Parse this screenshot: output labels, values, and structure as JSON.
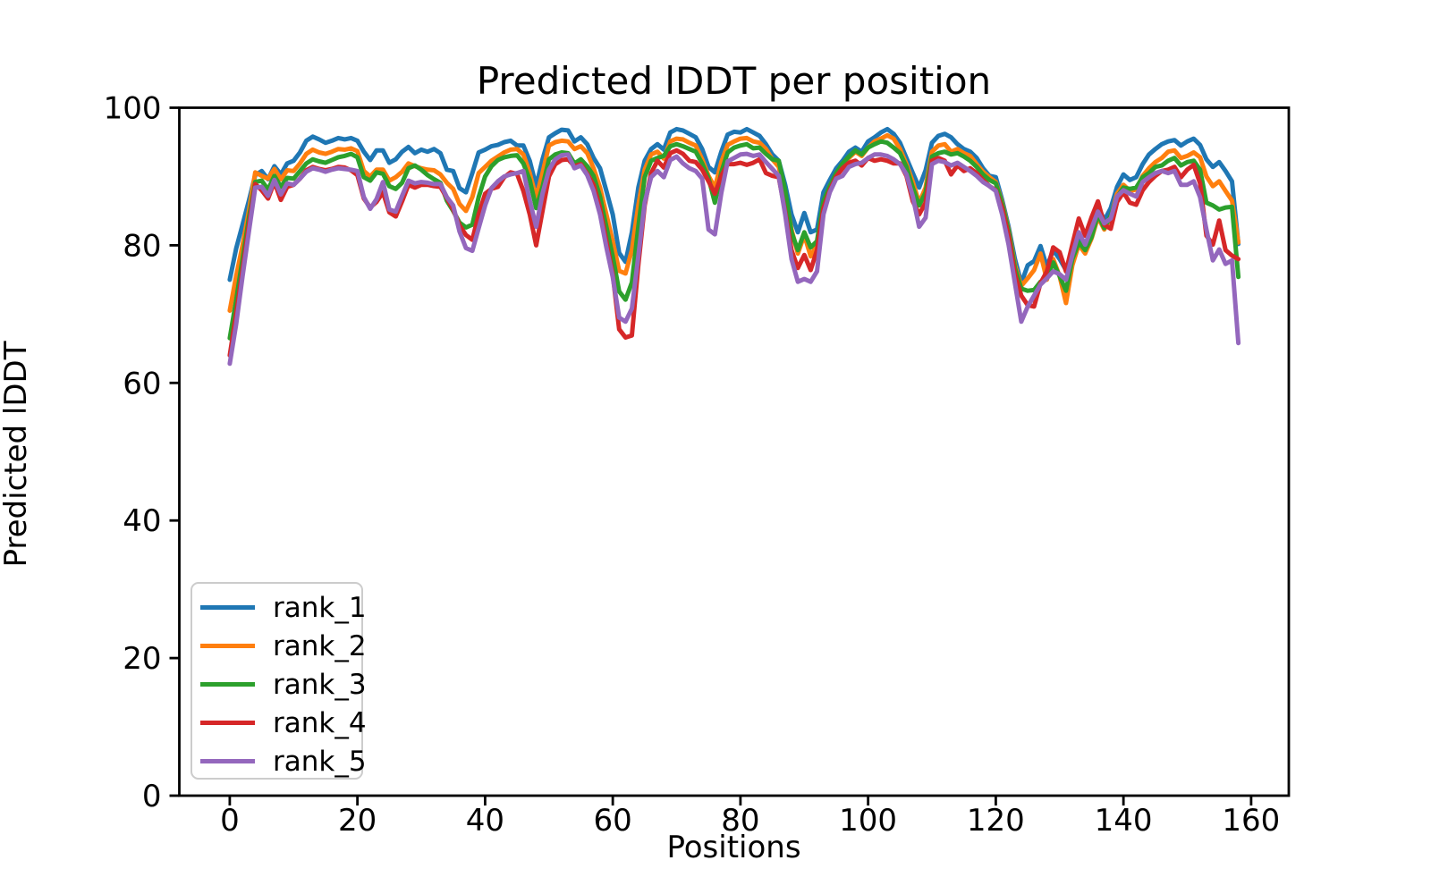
{
  "figure": {
    "background": "#ffffff",
    "text_color": "#000000",
    "spine_color": "#000000"
  },
  "chart_data": {
    "type": "line",
    "title": "Predicted lDDT per position",
    "xlabel": "Positions",
    "ylabel": "Predicted lDDT",
    "xlim": [
      -7.9,
      165.9
    ],
    "ylim": [
      0,
      100
    ],
    "x_ticks": [
      0,
      20,
      40,
      60,
      80,
      100,
      120,
      140,
      160
    ],
    "y_ticks": [
      0,
      20,
      40,
      60,
      80,
      100
    ],
    "grid": false,
    "legend_position": "lower left",
    "x_start": 0,
    "x_step": 1,
    "n_points": 159,
    "series": [
      {
        "name": "rank_1",
        "color": "#1f77b4",
        "values": [
          75.0,
          79.5,
          83.0,
          86.5,
          90.2,
          90.8,
          89.6,
          91.5,
          90.3,
          91.9,
          92.3,
          93.5,
          95.2,
          95.8,
          95.4,
          94.9,
          95.2,
          95.6,
          95.4,
          95.6,
          95.2,
          93.6,
          92.4,
          93.8,
          93.8,
          92.0,
          92.5,
          93.6,
          94.3,
          93.4,
          93.9,
          93.6,
          94.0,
          93.4,
          91.0,
          90.8,
          88.3,
          87.7,
          90.5,
          93.5,
          93.9,
          94.4,
          94.6,
          95.0,
          95.2,
          94.5,
          94.5,
          92.3,
          88.6,
          92.5,
          95.7,
          96.3,
          96.8,
          96.7,
          95.1,
          95.7,
          94.7,
          92.7,
          91.2,
          87.9,
          84.5,
          78.9,
          77.6,
          81.9,
          88.4,
          92.3,
          94.0,
          94.7,
          93.9,
          96.4,
          96.9,
          96.7,
          96.2,
          95.7,
          94.0,
          91.4,
          90.6,
          93.6,
          96.1,
          96.5,
          96.4,
          96.9,
          96.4,
          95.9,
          94.7,
          93.2,
          92.3,
          88.8,
          84.5,
          81.9,
          84.7,
          81.9,
          82.3,
          87.7,
          89.5,
          91.2,
          92.3,
          93.6,
          94.2,
          93.6,
          95.1,
          95.7,
          96.4,
          96.9,
          96.2,
          94.9,
          92.7,
          90.5,
          88.4,
          90.9,
          94.9,
          95.9,
          96.2,
          95.7,
          94.7,
          94.0,
          93.6,
          92.7,
          91.2,
          90.1,
          89.9,
          86.6,
          82.7,
          78.0,
          74.5,
          77.1,
          77.7,
          79.9,
          76.9,
          79.3,
          78.0,
          76.4,
          79.3,
          81.0,
          79.7,
          82.1,
          85.8,
          83.6,
          85.4,
          88.5,
          90.3,
          89.5,
          89.9,
          91.8,
          93.2,
          94.0,
          94.7,
          95.1,
          95.3,
          94.5,
          95.1,
          95.5,
          94.6,
          92.5,
          91.4,
          92.1,
          90.8,
          89.3,
          80.2
        ]
      },
      {
        "name": "rank_2",
        "color": "#ff7f0e",
        "values": [
          70.5,
          75.5,
          80.0,
          85.0,
          90.6,
          90.1,
          89.7,
          91.1,
          89.6,
          90.9,
          90.8,
          91.9,
          93.3,
          93.9,
          93.5,
          93.3,
          93.6,
          94.0,
          93.9,
          94.1,
          93.7,
          90.8,
          90.0,
          91.0,
          91.0,
          89.4,
          89.9,
          90.7,
          91.9,
          91.5,
          91.2,
          91.0,
          90.9,
          90.3,
          89.1,
          88.2,
          86.0,
          85.0,
          87.0,
          90.5,
          91.4,
          92.3,
          92.9,
          93.5,
          93.9,
          94.0,
          93.2,
          90.5,
          86.9,
          90.5,
          94.5,
          95.0,
          95.2,
          95.1,
          94.0,
          94.4,
          93.4,
          91.2,
          88.4,
          84.5,
          80.6,
          76.3,
          75.9,
          79.3,
          85.8,
          91.0,
          93.2,
          93.6,
          92.6,
          95.1,
          95.5,
          95.4,
          94.9,
          94.5,
          92.5,
          90.1,
          88.4,
          92.1,
          94.6,
          95.1,
          95.5,
          95.6,
          95.1,
          94.9,
          94.0,
          92.5,
          91.4,
          87.5,
          82.3,
          78.8,
          81.5,
          78.4,
          80.1,
          86.2,
          88.6,
          90.3,
          91.6,
          92.7,
          93.6,
          93.0,
          94.2,
          95.1,
          95.5,
          96.0,
          95.5,
          94.0,
          91.8,
          89.2,
          86.2,
          88.4,
          93.6,
          94.5,
          94.7,
          93.6,
          94.0,
          93.4,
          93.0,
          91.8,
          90.7,
          89.9,
          89.2,
          86.2,
          82.3,
          77.1,
          74.1,
          75.2,
          76.4,
          78.8,
          75.0,
          78.0,
          75.5,
          71.6,
          77.1,
          80.1,
          78.8,
          81.0,
          84.1,
          82.3,
          84.1,
          87.5,
          88.8,
          87.9,
          88.1,
          90.1,
          91.2,
          92.1,
          92.7,
          93.6,
          93.8,
          92.7,
          93.0,
          93.5,
          92.8,
          90.0,
          88.6,
          89.3,
          87.9,
          86.5,
          80.4
        ]
      },
      {
        "name": "rank_3",
        "color": "#2ca02c",
        "values": [
          66.5,
          72.0,
          78.0,
          84.0,
          89.2,
          89.4,
          88.1,
          90.1,
          88.5,
          89.8,
          89.7,
          90.8,
          91.9,
          92.5,
          92.2,
          92.0,
          92.4,
          92.8,
          93.0,
          93.3,
          92.8,
          89.9,
          89.4,
          90.6,
          90.4,
          88.6,
          88.2,
          89.1,
          91.2,
          91.6,
          91.0,
          90.2,
          89.6,
          89.1,
          86.5,
          85.0,
          83.3,
          82.6,
          83.0,
          87.0,
          90.0,
          91.5,
          92.4,
          92.8,
          93.0,
          93.1,
          91.9,
          89.5,
          85.4,
          88.5,
          92.5,
          93.2,
          93.5,
          93.4,
          91.9,
          92.5,
          91.5,
          90.1,
          87.1,
          82.7,
          78.4,
          73.3,
          72.1,
          74.6,
          82.7,
          89.9,
          92.3,
          92.7,
          93.0,
          94.4,
          94.7,
          94.4,
          94.0,
          93.6,
          91.9,
          89.8,
          86.2,
          90.6,
          93.5,
          94.2,
          94.5,
          94.7,
          94.1,
          94.2,
          93.3,
          92.5,
          92.3,
          88.0,
          81.9,
          79.3,
          81.9,
          79.7,
          80.6,
          86.4,
          88.6,
          90.5,
          91.9,
          92.9,
          93.8,
          93.2,
          94.2,
          94.7,
          95.1,
          94.9,
          94.2,
          93.4,
          91.4,
          88.4,
          85.8,
          87.7,
          92.9,
          93.4,
          93.6,
          93.2,
          93.4,
          92.9,
          92.3,
          91.4,
          90.3,
          89.5,
          89.0,
          86.0,
          82.1,
          76.7,
          73.7,
          73.4,
          73.5,
          74.7,
          75.2,
          77.5,
          75.5,
          73.4,
          78.0,
          80.4,
          79.3,
          81.2,
          84.5,
          82.5,
          84.3,
          87.0,
          88.4,
          88.2,
          88.4,
          89.9,
          90.5,
          91.4,
          91.6,
          92.3,
          92.7,
          91.6,
          92.1,
          92.3,
          91.0,
          86.2,
          85.8,
          85.2,
          85.5,
          85.6,
          75.4
        ]
      },
      {
        "name": "rank_4",
        "color": "#d62728",
        "values": [
          64.0,
          70.0,
          76.5,
          83.0,
          88.9,
          88.0,
          86.8,
          89.2,
          86.6,
          88.5,
          88.8,
          89.7,
          90.9,
          91.4,
          91.1,
          90.9,
          91.1,
          91.4,
          91.3,
          90.9,
          90.2,
          86.8,
          85.5,
          86.3,
          87.7,
          84.8,
          84.2,
          86.4,
          88.8,
          88.4,
          88.8,
          88.8,
          88.6,
          88.5,
          86.9,
          85.2,
          82.9,
          81.5,
          80.8,
          84.5,
          87.5,
          88.2,
          88.5,
          89.9,
          90.6,
          90.4,
          87.9,
          84.5,
          80.0,
          85.0,
          90.0,
          91.8,
          92.4,
          92.5,
          91.5,
          91.8,
          90.4,
          88.8,
          85.4,
          80.6,
          75.8,
          67.8,
          66.6,
          66.9,
          77.1,
          85.8,
          90.5,
          92.3,
          91.3,
          93.4,
          93.8,
          93.3,
          92.3,
          92.1,
          91.0,
          89.3,
          87.5,
          90.1,
          91.8,
          91.8,
          92.0,
          91.7,
          92.0,
          92.5,
          90.5,
          90.1,
          89.9,
          84.9,
          79.3,
          76.7,
          78.6,
          76.4,
          79.3,
          85.4,
          88.0,
          90.0,
          91.2,
          92.0,
          92.3,
          91.6,
          92.7,
          92.3,
          92.5,
          92.3,
          91.9,
          91.9,
          90.1,
          86.4,
          84.5,
          86.2,
          92.3,
          92.7,
          92.3,
          90.3,
          91.6,
          90.8,
          91.2,
          90.5,
          89.5,
          88.6,
          88.0,
          85.4,
          81.4,
          75.8,
          72.7,
          71.3,
          71.1,
          74.5,
          76.2,
          79.7,
          79.0,
          76.2,
          80.1,
          83.9,
          81.4,
          84.1,
          86.4,
          83.0,
          82.4,
          86.3,
          87.7,
          86.2,
          85.9,
          88.0,
          89.2,
          90.1,
          90.8,
          91.0,
          91.4,
          89.9,
          91.0,
          91.7,
          89.0,
          81.4,
          80.1,
          83.6,
          79.3,
          78.5,
          78.0
        ]
      },
      {
        "name": "rank_5",
        "color": "#9467bd",
        "values": [
          62.8,
          68.5,
          75.5,
          82.0,
          88.4,
          88.5,
          87.2,
          89.5,
          87.4,
          89.0,
          88.8,
          89.7,
          90.7,
          91.2,
          91.0,
          90.7,
          91.0,
          91.2,
          91.1,
          91.0,
          90.8,
          87.0,
          85.3,
          86.7,
          89.2,
          85.2,
          84.9,
          87.2,
          89.4,
          89.0,
          89.2,
          89.1,
          88.9,
          88.9,
          87.0,
          85.8,
          82.0,
          79.6,
          79.2,
          82.5,
          85.8,
          88.3,
          89.3,
          90.0,
          90.3,
          90.5,
          90.8,
          86.5,
          82.7,
          87.5,
          91.0,
          92.5,
          93.1,
          93.2,
          91.2,
          91.6,
          90.2,
          87.9,
          84.5,
          79.7,
          75.4,
          69.5,
          68.9,
          70.8,
          78.4,
          86.2,
          89.9,
          90.8,
          89.9,
          92.4,
          92.9,
          91.9,
          91.2,
          90.8,
          89.7,
          82.3,
          81.6,
          87.6,
          92.2,
          92.7,
          93.2,
          93.3,
          93.0,
          93.2,
          92.1,
          91.1,
          90.1,
          84.5,
          78.0,
          74.7,
          75.1,
          74.7,
          76.2,
          84.5,
          87.7,
          89.7,
          90.1,
          91.4,
          91.8,
          92.0,
          92.7,
          93.2,
          93.2,
          93.0,
          92.5,
          91.8,
          90.3,
          87.1,
          82.7,
          84.0,
          91.8,
          92.3,
          92.1,
          91.6,
          92.0,
          91.4,
          90.8,
          90.1,
          89.2,
          88.6,
          87.9,
          84.5,
          80.1,
          74.5,
          68.9,
          71.1,
          72.7,
          74.3,
          75.2,
          76.2,
          75.8,
          75.0,
          78.6,
          81.9,
          80.1,
          82.5,
          84.9,
          83.2,
          83.9,
          87.1,
          88.0,
          87.5,
          87.1,
          89.2,
          89.9,
          90.5,
          90.8,
          90.5,
          90.8,
          88.8,
          88.8,
          89.3,
          87.0,
          82.3,
          77.8,
          79.4,
          77.3,
          77.8,
          65.8
        ]
      }
    ]
  }
}
